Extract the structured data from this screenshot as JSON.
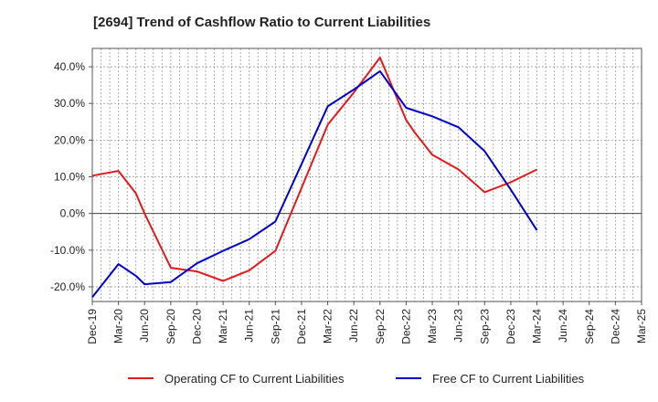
{
  "chart_data": {
    "type": "line",
    "title": "[2694]  Trend of Cashflow Ratio to Current Liabilities",
    "xlabel": "",
    "ylabel": "",
    "x_ticks": [
      "Dec-19",
      "Mar-20",
      "Jun-20",
      "Sep-20",
      "Dec-20",
      "Mar-21",
      "Jun-21",
      "Sep-21",
      "Dec-21",
      "Mar-22",
      "Jun-22",
      "Sep-22",
      "Dec-22",
      "Mar-23",
      "Jun-23",
      "Sep-23",
      "Dec-23",
      "Mar-24",
      "Jun-24",
      "Sep-24",
      "Dec-24",
      "Mar-25"
    ],
    "y_ticks": [
      "-20.0%",
      "-10.0%",
      "0.0%",
      "10.0%",
      "20.0%",
      "30.0%",
      "40.0%"
    ],
    "ylim": [
      -24,
      45
    ],
    "grid": true,
    "legend": "bottom",
    "series": [
      {
        "name": "Operating CF to Current Liabilities",
        "color": "#e41a1c",
        "x": [
          "Dec-19",
          "Mar-20",
          "May-20",
          "Jun-20",
          "Sep-20",
          "Dec-20",
          "Mar-21",
          "Jun-21",
          "Sep-21",
          "Dec-21",
          "Mar-22",
          "Jun-22",
          "Sep-22",
          "Dec-22",
          "Jan-23",
          "Mar-23",
          "Jun-23",
          "Sep-23",
          "Dec-23",
          "Mar-24"
        ],
        "values": [
          10.3,
          11.6,
          5.5,
          0.0,
          -14.8,
          -15.8,
          -18.4,
          -15.5,
          -10.2,
          7.0,
          24.2,
          33.0,
          42.5,
          25.5,
          22.0,
          16.0,
          12.0,
          5.8,
          8.5,
          12.0
        ]
      },
      {
        "name": "Free CF to Current Liabilities",
        "color": "#0000cc",
        "x": [
          "Dec-19",
          "Mar-20",
          "May-20",
          "Jun-20",
          "Sep-20",
          "Dec-20",
          "Mar-21",
          "Jun-21",
          "Sep-21",
          "Dec-21",
          "Mar-22",
          "Jun-22",
          "Sep-22",
          "Dec-22",
          "Mar-23",
          "Jun-23",
          "Sep-23",
          "Dec-23",
          "Mar-24"
        ],
        "values": [
          -22.8,
          -13.8,
          -17.0,
          -19.3,
          -18.7,
          -13.6,
          -10.2,
          -7.0,
          -2.2,
          13.5,
          29.2,
          33.8,
          38.8,
          28.8,
          26.5,
          23.5,
          17.0,
          6.5,
          -4.6
        ]
      }
    ]
  }
}
